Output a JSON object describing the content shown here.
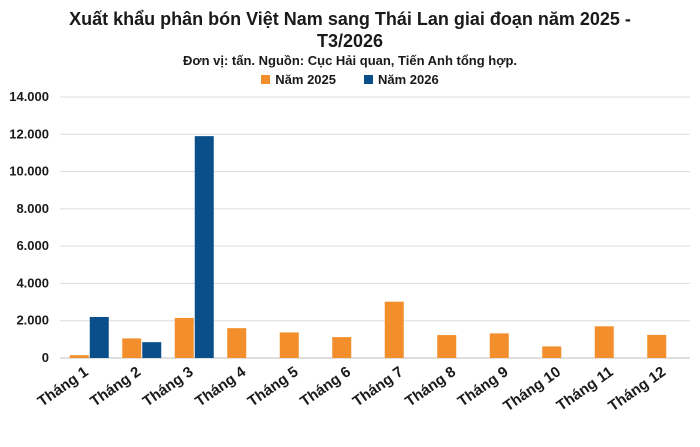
{
  "chart_data": {
    "type": "bar",
    "title_lines": [
      "Xuất khẩu phân bón Việt Nam sang Thái Lan giai đoạn năm 2025 -",
      "T3/2026"
    ],
    "subtitle": "Đơn vị: tấn. Nguồn: Cục Hải quan, Tiến Anh tổng hợp.",
    "categories": [
      "Tháng 1",
      "Tháng 2",
      "Tháng 3",
      "Tháng 4",
      "Tháng 5",
      "Tháng 6",
      "Tháng 7",
      "Tháng 8",
      "Tháng 9",
      "Tháng 10",
      "Tháng 11",
      "Tháng 12"
    ],
    "series": [
      {
        "name": "Năm 2025",
        "color": "#F28E2B",
        "values": [
          150,
          1050,
          2150,
          1600,
          1370,
          1120,
          3020,
          1230,
          1320,
          620,
          1700,
          1240
        ]
      },
      {
        "name": "Năm 2026",
        "color": "#0B4F8A",
        "values": [
          2200,
          850,
          11900,
          null,
          null,
          null,
          null,
          null,
          null,
          null,
          null,
          null
        ]
      }
    ],
    "yticks": [
      "0",
      "2.000",
      "4.000",
      "6.000",
      "8.000",
      "10.000",
      "12.000",
      "14.000"
    ],
    "ylim": [
      0,
      14000
    ],
    "grid": true,
    "legend_position": "top"
  }
}
